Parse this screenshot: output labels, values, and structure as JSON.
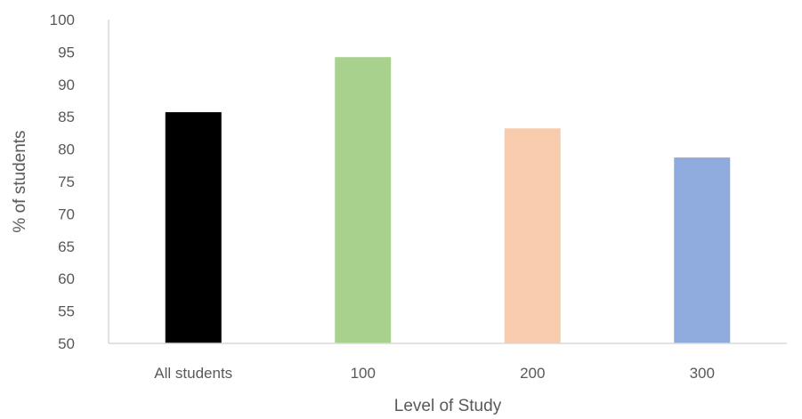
{
  "chart_data": {
    "type": "bar",
    "categories": [
      "All students",
      "100",
      "200",
      "300"
    ],
    "values": [
      85.7,
      94.2,
      83.2,
      78.7
    ],
    "colors": [
      "#000000",
      "#a9d18e",
      "#f8cbad",
      "#8faadc"
    ],
    "title": "",
    "xlabel": "Level of Study",
    "ylabel": "% of students",
    "ylim": [
      50,
      100
    ],
    "yticks": [
      50,
      55,
      60,
      65,
      70,
      75,
      80,
      85,
      90,
      95,
      100
    ],
    "grid": false,
    "legend": "none"
  }
}
